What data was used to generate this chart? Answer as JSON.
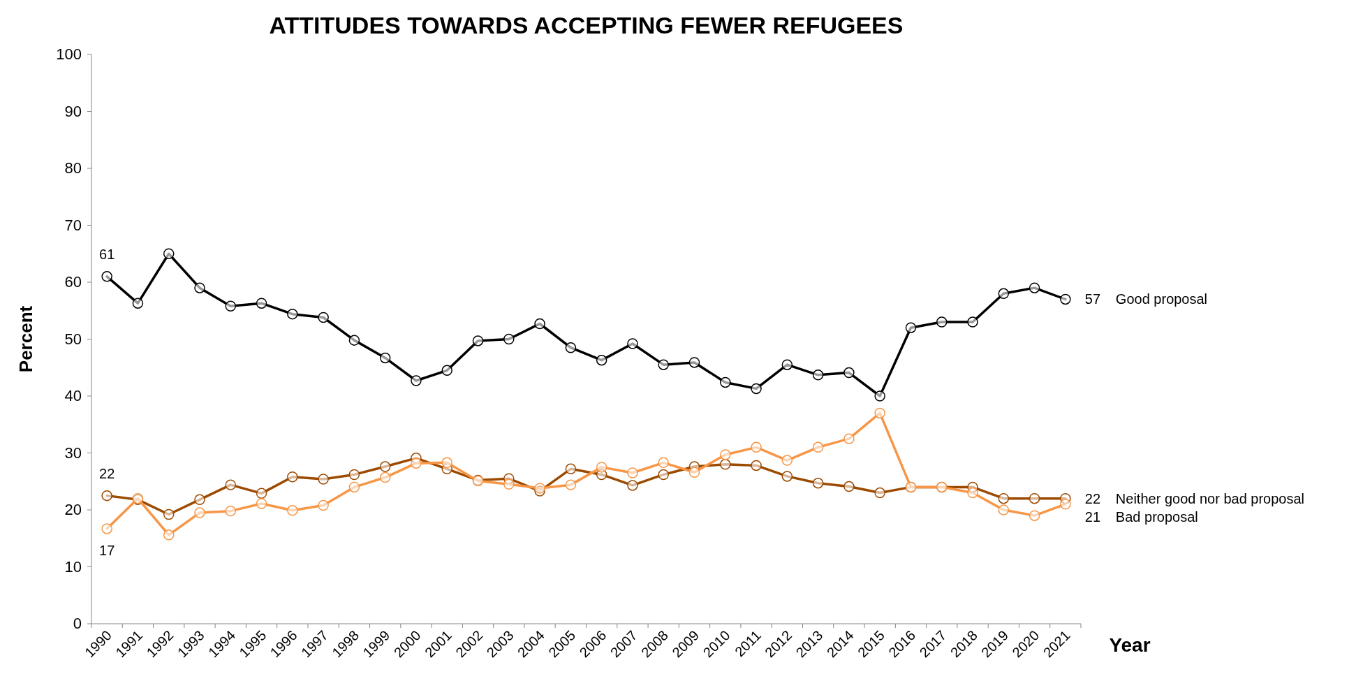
{
  "chart_data": {
    "type": "line",
    "title": "ATTITUDES TOWARDS ACCEPTING FEWER REFUGEES",
    "xlabel": "Year",
    "ylabel": "Percent",
    "categories": [
      "1990",
      "1991",
      "1992",
      "1993",
      "1994",
      "1995",
      "1996",
      "1997",
      "1998",
      "1999",
      "2000",
      "2001",
      "2002",
      "2003",
      "2004",
      "2005",
      "2006",
      "2007",
      "2008",
      "2009",
      "2010",
      "2011",
      "2012",
      "2013",
      "2014",
      "2015",
      "2016",
      "2017",
      "2018",
      "2019",
      "2020",
      "2021"
    ],
    "ylim": [
      0,
      100
    ],
    "yticks": [
      0,
      10,
      20,
      30,
      40,
      50,
      60,
      70,
      80,
      90,
      100
    ],
    "grid": false,
    "marker": "circle",
    "line_style": "solid",
    "series": [
      {
        "name": "Good proposal",
        "color": "#000000",
        "values": [
          61,
          56.3,
          65,
          59,
          55.8,
          56.3,
          54.4,
          53.8,
          49.8,
          46.7,
          42.7,
          44.5,
          49.7,
          50,
          52.7,
          48.5,
          46.3,
          49.2,
          45.5,
          45.9,
          42.4,
          41.3,
          45.5,
          43.7,
          44.1,
          40,
          52,
          53,
          53,
          58,
          59,
          57
        ],
        "value_labels": [
          "61",
          null,
          null,
          null,
          null,
          null,
          null,
          null,
          null,
          null,
          null,
          null,
          null,
          null,
          null,
          null,
          null,
          null,
          null,
          null,
          null,
          null,
          null,
          null,
          null,
          null,
          null,
          null,
          null,
          null,
          null,
          "57"
        ]
      },
      {
        "name": "Neither good nor bad proposal",
        "color": "#9c4a00",
        "values": [
          22.5,
          21.8,
          19.2,
          21.8,
          24.4,
          22.9,
          25.8,
          25.4,
          26.2,
          27.6,
          29.1,
          27.2,
          25.2,
          25.5,
          23.3,
          27.2,
          26.2,
          24.3,
          26.2,
          27.6,
          28,
          27.8,
          25.9,
          24.7,
          24.1,
          23,
          24,
          24,
          24,
          22,
          22,
          22
        ],
        "value_labels": [
          "22",
          null,
          null,
          null,
          null,
          null,
          null,
          null,
          null,
          null,
          null,
          null,
          null,
          null,
          null,
          null,
          null,
          null,
          null,
          null,
          null,
          null,
          null,
          null,
          null,
          null,
          null,
          null,
          null,
          null,
          null,
          "22"
        ]
      },
      {
        "name": "Bad proposal",
        "color": "#f79646",
        "values": [
          16.7,
          22,
          15.6,
          19.5,
          19.8,
          21.1,
          19.9,
          20.8,
          24,
          25.7,
          28.2,
          28.3,
          25.1,
          24.5,
          23.8,
          24.4,
          27.5,
          26.5,
          28.3,
          26.6,
          29.7,
          31,
          28.7,
          31,
          32.5,
          37,
          24,
          24,
          23,
          20,
          19,
          21
        ],
        "value_labels": [
          "17",
          null,
          null,
          null,
          null,
          null,
          null,
          null,
          null,
          null,
          null,
          null,
          null,
          null,
          null,
          null,
          null,
          null,
          null,
          null,
          null,
          null,
          null,
          null,
          null,
          null,
          null,
          null,
          null,
          null,
          null,
          "21"
        ]
      }
    ]
  }
}
